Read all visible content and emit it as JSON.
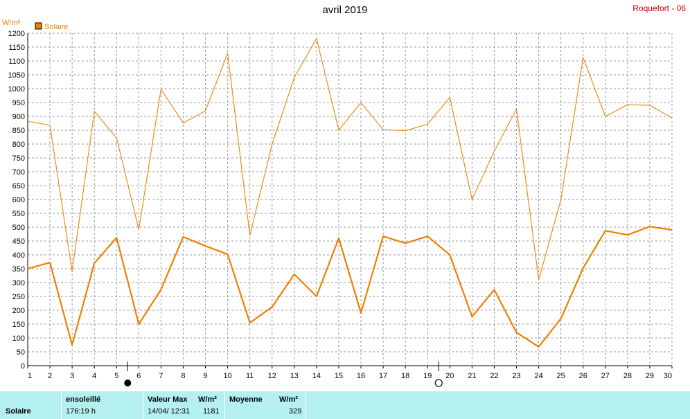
{
  "header": {
    "title": "avril 2019",
    "station": "Roquefort - 06"
  },
  "colors": {
    "max_line": "#ee8c1a",
    "mean_line": "#ee8000",
    "grid": "#999999",
    "panel_bg": "#b4f0f0",
    "station_text": "#cc0000"
  },
  "chart_data": {
    "type": "line",
    "title": "avril 2019",
    "ylabel": "W/m²",
    "ylim": [
      0,
      1200
    ],
    "y_ticks": [
      0,
      50,
      100,
      150,
      200,
      250,
      300,
      350,
      400,
      450,
      500,
      550,
      600,
      650,
      700,
      750,
      800,
      850,
      900,
      950,
      1000,
      1050,
      1100,
      1150,
      1200
    ],
    "x": [
      1,
      2,
      3,
      4,
      5,
      6,
      7,
      8,
      9,
      10,
      11,
      12,
      13,
      14,
      15,
      16,
      17,
      18,
      19,
      20,
      21,
      22,
      23,
      24,
      25,
      26,
      27,
      28,
      29,
      30
    ],
    "xlim": [
      1,
      30
    ],
    "legend": [
      "Solaire"
    ],
    "series": [
      {
        "values": [
          882,
          868,
          340,
          918,
          822,
          492,
          998,
          876,
          920,
          1128,
          470,
          800,
          1040,
          1181,
          850,
          950,
          852,
          848,
          872,
          968,
          600,
          774,
          926,
          310,
          600,
          1112,
          900,
          942,
          940,
          894
        ]
      },
      {
        "values": [
          350,
          372,
          75,
          370,
          462,
          150,
          275,
          465,
          432,
          402,
          155,
          212,
          330,
          250,
          460,
          190,
          467,
          442,
          467,
          400,
          177,
          274,
          120,
          68,
          170,
          352,
          487,
          472,
          502,
          490
        ]
      }
    ],
    "moon_phases": [
      {
        "day": 5.5,
        "phase": "new"
      },
      {
        "day": 19.5,
        "phase": "full"
      }
    ],
    "grid": true
  },
  "summary": {
    "series_label": "Solaire",
    "sunshine": {
      "header": "ensoleillé",
      "value": "176:19 h"
    },
    "max": {
      "header": "Valeur Max",
      "unit": "W/m²",
      "date": "14/04/  12:31",
      "value": "1181"
    },
    "mean": {
      "header": "Moyenne",
      "unit": "W/m²",
      "value": "329"
    }
  }
}
